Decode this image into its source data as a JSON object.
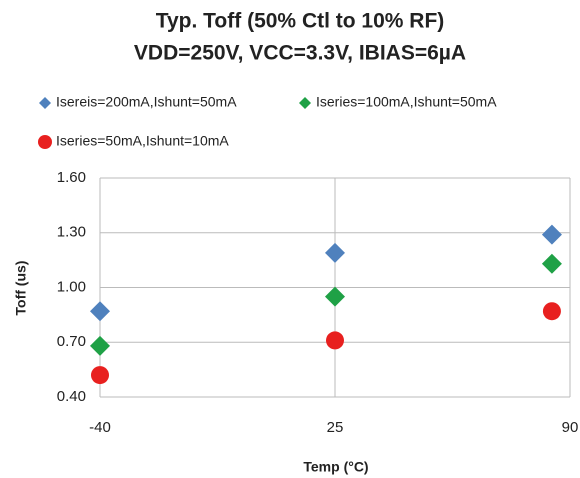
{
  "chart_data": {
    "type": "scatter",
    "title": [
      "Typ. Toff (50% Ctl to 10% RF)",
      "VDD=250V, VCC=3.3V, IBIAS=6µA"
    ],
    "xlabel": "Temp (°C)",
    "ylabel": "Toff (us)",
    "xlim": [
      -40,
      90
    ],
    "xticks": [
      -40,
      25,
      90
    ],
    "ylim": [
      0.4,
      1.6
    ],
    "yticks": [
      {
        "value": 0.4,
        "label": "0.40"
      },
      {
        "value": 0.7,
        "label": "0.70"
      },
      {
        "value": 1.0,
        "label": "1.00"
      },
      {
        "value": 1.3,
        "label": "1.30"
      },
      {
        "value": 1.6,
        "label": "1.60"
      }
    ],
    "grid": true,
    "series": [
      {
        "name": "Isereis=200mA,Ishunt=50mA",
        "color": "#4f81bd",
        "marker": "diamond",
        "x": [
          -40,
          25,
          85
        ],
        "values": [
          0.87,
          1.19,
          1.29
        ]
      },
      {
        "name": "Iseries=100mA,Ishunt=50mA",
        "color": "#1fa146",
        "marker": "diamond",
        "x": [
          -40,
          25,
          85
        ],
        "values": [
          0.68,
          0.95,
          1.13
        ]
      },
      {
        "name": "Iseries=50mA,Ishunt=10mA",
        "color": "#e8201f",
        "marker": "circle",
        "x": [
          -40,
          25,
          85
        ],
        "values": [
          0.52,
          0.71,
          0.87
        ]
      }
    ]
  }
}
